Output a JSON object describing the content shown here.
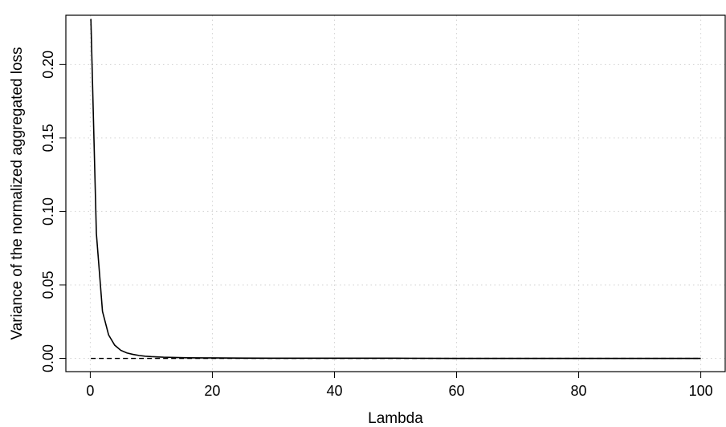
{
  "chart_data": {
    "type": "line",
    "title": "",
    "xlabel": "Lambda",
    "ylabel": "Variance of the normalized aggregated loss",
    "xlim": [
      -4,
      104
    ],
    "ylim": [
      -0.009,
      0.2335
    ],
    "x_ticks": [
      0,
      20,
      40,
      60,
      80,
      100
    ],
    "x_tick_labels": [
      "0",
      "20",
      "40",
      "60",
      "80",
      "100"
    ],
    "y_ticks": [
      0.0,
      0.05,
      0.1,
      0.15,
      0.2
    ],
    "y_tick_labels": [
      "0.00",
      "0.05",
      "0.10",
      "0.15",
      "0.20"
    ],
    "grid": true,
    "legend": "none",
    "series": [
      {
        "style": "solid",
        "color": "#000000",
        "x": [
          0.1,
          1,
          2,
          3,
          4,
          5,
          6,
          7,
          8,
          9,
          10,
          12,
          14,
          16,
          20,
          25,
          30,
          40,
          50,
          60,
          70,
          80,
          90,
          100
        ],
        "y": [
          0.231,
          0.085,
          0.032,
          0.016,
          0.009,
          0.0055,
          0.0037,
          0.0027,
          0.002,
          0.0015,
          0.0012,
          0.0008,
          0.0006,
          0.0004,
          0.0003,
          0.0002,
          0.0001,
          0.0001,
          0.0001,
          0.0,
          0.0,
          0.0,
          0.0,
          0.0
        ]
      },
      {
        "style": "dashed",
        "color": "#000000",
        "x": [
          0.1,
          100
        ],
        "y": [
          0.0,
          0.0
        ]
      }
    ]
  }
}
